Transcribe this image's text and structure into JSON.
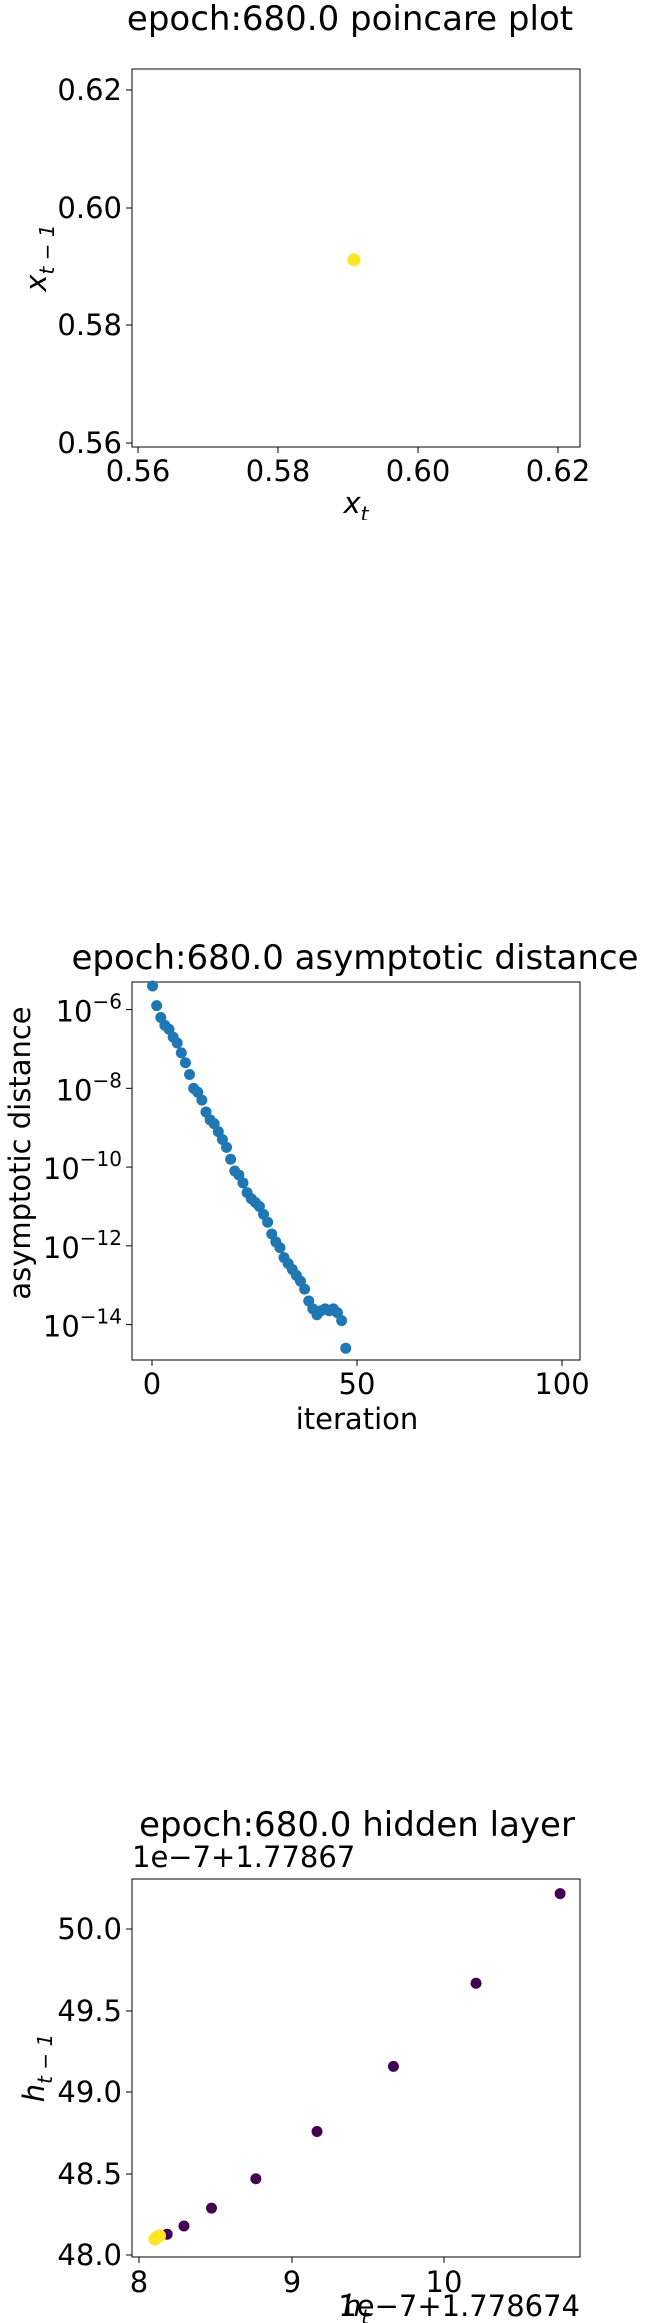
{
  "chart_data": [
    {
      "type": "scatter",
      "title": "epoch:680.0 poincare plot",
      "xlabel": "x_t",
      "ylabel": "x_{t-1}",
      "xlim": [
        0.5595,
        0.6235
      ],
      "ylim": [
        0.5595,
        0.6235
      ],
      "xticks": [
        0.56,
        0.58,
        0.6,
        0.62
      ],
      "xtick_labels": [
        "0.56",
        "0.58",
        "0.60",
        "0.62"
      ],
      "yticks": [
        0.56,
        0.58,
        0.6,
        0.62
      ],
      "ytick_labels": [
        "0.56",
        "0.58",
        "0.60",
        "0.62"
      ],
      "grid": false,
      "color": "#fde725",
      "points": [
        {
          "x": 0.5912,
          "y": 0.5912
        }
      ]
    },
    {
      "type": "scatter",
      "title": "epoch:680.0 asymptotic distance",
      "xlabel": "iteration",
      "ylabel": "asymptotic distance",
      "yscale": "log",
      "xlim": [
        -5,
        104
      ],
      "ylim_log10": [
        -14.9,
        -5.3
      ],
      "xticks": [
        0,
        50,
        100
      ],
      "xtick_labels": [
        "0",
        "50",
        "100"
      ],
      "yticks_log10": [
        -6,
        -8,
        -10,
        -12,
        -14
      ],
      "ytick_bases": [
        "10",
        "10",
        "10",
        "10",
        "10"
      ],
      "ytick_exps": [
        "−6",
        "−8",
        "−10",
        "−12",
        "−14"
      ],
      "grid": false,
      "color": "#1f77b4",
      "x": [
        0,
        1,
        2,
        3,
        4,
        5,
        6,
        7,
        8,
        9,
        10,
        11,
        12,
        13,
        14,
        15,
        16,
        17,
        18,
        19,
        20,
        21,
        22,
        23,
        24,
        25,
        26,
        27,
        28,
        29,
        30,
        31,
        32,
        33,
        34,
        35,
        36,
        37,
        38,
        39,
        40,
        41,
        42,
        43,
        44,
        45,
        46,
        47
      ],
      "log10_y": [
        -5.4,
        -5.9,
        -6.2,
        -6.4,
        -6.5,
        -6.7,
        -6.85,
        -7.1,
        -7.35,
        -7.65,
        -8.0,
        -8.1,
        -8.3,
        -8.6,
        -8.8,
        -8.9,
        -9.1,
        -9.3,
        -9.5,
        -9.8,
        -10.1,
        -10.2,
        -10.4,
        -10.65,
        -10.8,
        -10.9,
        -11.0,
        -11.2,
        -11.4,
        -11.7,
        -11.9,
        -12.05,
        -12.3,
        -12.45,
        -12.6,
        -12.75,
        -12.9,
        -13.1,
        -13.4,
        -13.6,
        -13.75,
        -13.65,
        -13.6,
        -13.65,
        -13.6,
        -13.7,
        -13.9,
        -14.6
      ]
    },
    {
      "type": "scatter",
      "title": "epoch:680.0 hidden layer",
      "xlabel": "h_t",
      "ylabel": "h_{t-1}",
      "x_offset_text": "1e−7+1.778674",
      "y_offset_text": "1e−7+1.77867",
      "xlim": [
        7.95,
        10.88
      ],
      "ylim": [
        47.99,
        50.31
      ],
      "xticks": [
        8,
        9,
        10
      ],
      "xtick_labels": [
        "8",
        "9",
        "10"
      ],
      "yticks": [
        48.0,
        48.5,
        49.0,
        49.5,
        50.0
      ],
      "ytick_labels": [
        "48.0",
        "48.5",
        "49.0",
        "49.5",
        "50.0"
      ],
      "grid": false,
      "points": [
        {
          "x": 10.75,
          "y": 50.22,
          "color": "#440154"
        },
        {
          "x": 10.2,
          "y": 49.67,
          "color": "#440154"
        },
        {
          "x": 9.66,
          "y": 49.16,
          "color": "#440154"
        },
        {
          "x": 9.16,
          "y": 48.76,
          "color": "#440154"
        },
        {
          "x": 8.76,
          "y": 48.47,
          "color": "#440154"
        },
        {
          "x": 8.47,
          "y": 48.29,
          "color": "#440154"
        },
        {
          "x": 8.29,
          "y": 48.18,
          "color": "#440154"
        },
        {
          "x": 8.18,
          "y": 48.13,
          "color": "#440154"
        },
        {
          "x": 8.13,
          "y": 48.12,
          "color": "#fde725"
        },
        {
          "x": 8.11,
          "y": 48.11,
          "color": "#fde725"
        },
        {
          "x": 8.1,
          "y": 48.1,
          "color": "#fde725"
        }
      ]
    }
  ]
}
